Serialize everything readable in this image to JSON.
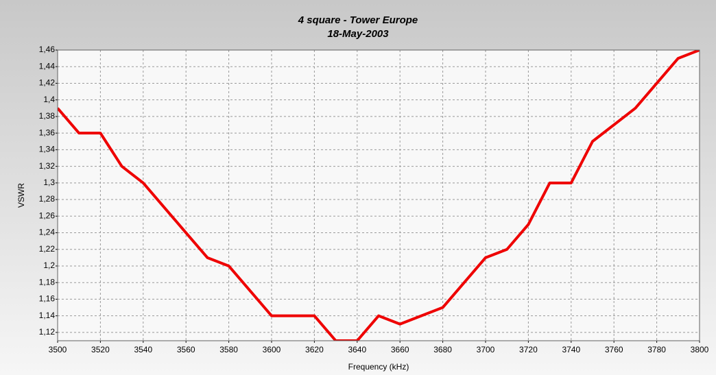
{
  "chart_data": {
    "type": "line",
    "title": "4 square - Tower Europe",
    "subtitle": "18-May-2003",
    "x_label": "Frequency (kHz)",
    "y_label": "VSWR",
    "x": [
      3500,
      3510,
      3520,
      3530,
      3540,
      3550,
      3560,
      3570,
      3580,
      3590,
      3600,
      3610,
      3620,
      3630,
      3640,
      3650,
      3660,
      3670,
      3680,
      3690,
      3700,
      3710,
      3720,
      3730,
      3740,
      3750,
      3760,
      3770,
      3780,
      3790,
      3800
    ],
    "values": [
      1.39,
      1.36,
      1.36,
      1.32,
      1.3,
      1.27,
      1.24,
      1.21,
      1.2,
      1.17,
      1.14,
      1.14,
      1.14,
      1.11,
      1.11,
      1.14,
      1.13,
      1.14,
      1.15,
      1.18,
      1.21,
      1.22,
      1.25,
      1.3,
      1.3,
      1.35,
      1.37,
      1.39,
      1.42,
      1.45,
      1.46
    ],
    "color": "#ee0000",
    "xlim": [
      3500,
      3800
    ],
    "xticks": [
      3500,
      3520,
      3540,
      3560,
      3580,
      3600,
      3620,
      3640,
      3660,
      3680,
      3700,
      3720,
      3740,
      3760,
      3780,
      3800
    ],
    "ylim": [
      1.11,
      1.46
    ],
    "yticks": [
      {
        "value": 1.12,
        "label": "1,12"
      },
      {
        "value": 1.14,
        "label": "1,14"
      },
      {
        "value": 1.16,
        "label": "1,16"
      },
      {
        "value": 1.18,
        "label": "1,18"
      },
      {
        "value": 1.2,
        "label": "1,2"
      },
      {
        "value": 1.22,
        "label": "1,22"
      },
      {
        "value": 1.24,
        "label": "1,24"
      },
      {
        "value": 1.26,
        "label": "1,26"
      },
      {
        "value": 1.28,
        "label": "1,28"
      },
      {
        "value": 1.3,
        "label": "1,3"
      },
      {
        "value": 1.32,
        "label": "1,32"
      },
      {
        "value": 1.34,
        "label": "1,34"
      },
      {
        "value": 1.36,
        "label": "1,36"
      },
      {
        "value": 1.38,
        "label": "1,38"
      },
      {
        "value": 1.4,
        "label": "1,4"
      },
      {
        "value": 1.42,
        "label": "1,42"
      },
      {
        "value": 1.44,
        "label": "1,44"
      },
      {
        "value": 1.46,
        "label": "1,46"
      }
    ],
    "grid": true
  }
}
